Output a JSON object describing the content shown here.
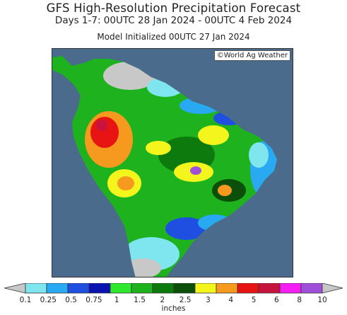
{
  "header": {
    "title": "GFS High-Resolution Precipitation Forecast",
    "period": "Days 1-7: 00UTC 28 Jan 2024 - 00UTC 4 Feb 2024",
    "initialized": "Model Initialized 00UTC 27 Jan 2024"
  },
  "map": {
    "region": "South America",
    "credit": "©World Ag Weather",
    "ocean_color": "#4a6b8c",
    "no_data_color": "#c8c8c8"
  },
  "legend": {
    "units": "inches",
    "ticks": [
      "0.1",
      "0.25",
      "0.5",
      "0.75",
      "1",
      "1.5",
      "2",
      "2.5",
      "3",
      "4",
      "5",
      "6",
      "8",
      "10"
    ],
    "colors": [
      "#c8c8c8",
      "#7fe6f0",
      "#29a9f2",
      "#1e4fe0",
      "#0a12b0",
      "#2ee82e",
      "#1fb21f",
      "#0c7a0c",
      "#0b4f0b",
      "#f5f51e",
      "#f59a1e",
      "#e81414",
      "#c8143c",
      "#f51ef5",
      "#a050d8",
      "#c8c8c8"
    ]
  }
}
